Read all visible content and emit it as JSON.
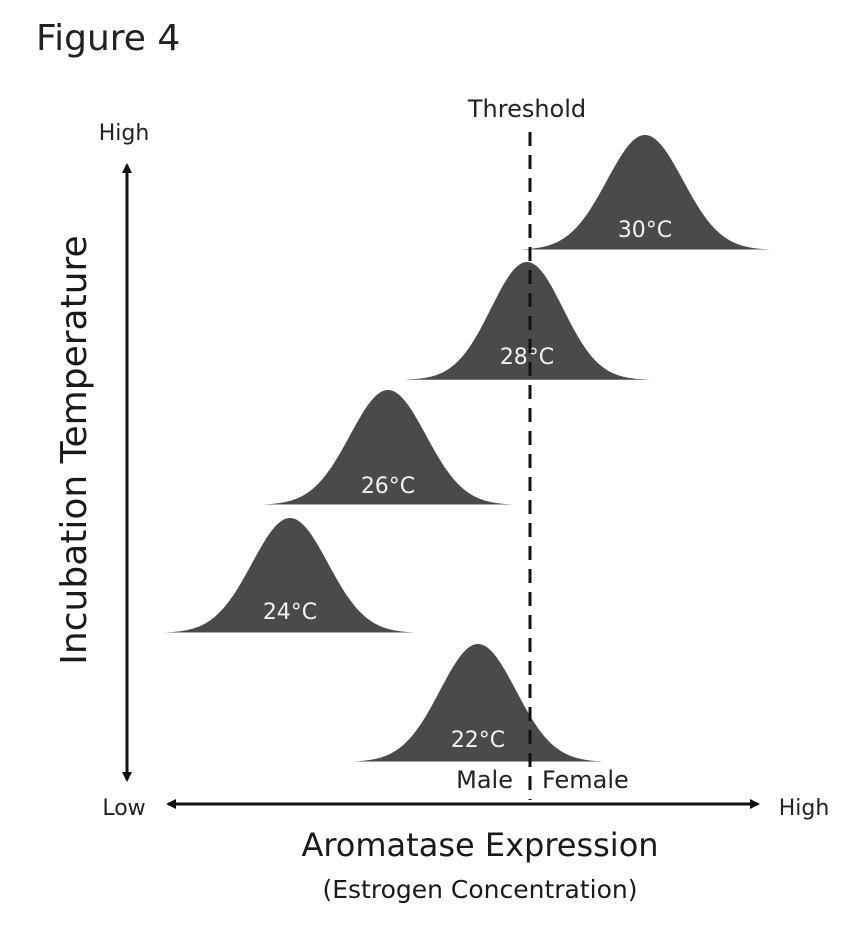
{
  "figure_title": "Figure 4",
  "y_axis": {
    "label": "Incubation Temperature",
    "high_label": "High",
    "low_label": "Low"
  },
  "x_axis": {
    "label": "Aromatase Expression",
    "sublabel": "(Estrogen Concentration)",
    "high_label": "High"
  },
  "threshold": {
    "label": "Threshold",
    "left_side_label": "Male",
    "right_side_label": "Female"
  },
  "distributions": [
    {
      "label": "30°C"
    },
    {
      "label": "28°C"
    },
    {
      "label": "26°C"
    },
    {
      "label": "24°C"
    },
    {
      "label": "22°C"
    }
  ],
  "colors": {
    "curve_fill": "#4a4a4a",
    "curve_text": "#f2f2f2",
    "axis": "#111111"
  }
}
